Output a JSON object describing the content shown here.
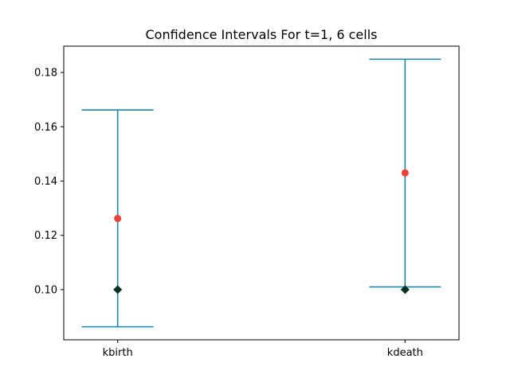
{
  "chart_data": {
    "type": "errorbar",
    "title": "Confidence Intervals For t=1, 6 cells",
    "xlabel": "",
    "ylabel": "",
    "categories": [
      "kbirth",
      "kdeath"
    ],
    "intervals": [
      {
        "category": "kbirth",
        "lower": 0.0863,
        "upper": 0.1662,
        "estimate": 0.1262,
        "true_value": 0.1
      },
      {
        "category": "kdeath",
        "lower": 0.101,
        "upper": 0.1849,
        "estimate": 0.143,
        "true_value": 0.1
      }
    ],
    "ylim": [
      0.0815,
      0.1897
    ],
    "yticks": [
      "0.10",
      "0.12",
      "0.14",
      "0.16",
      "0.18"
    ],
    "grid": false,
    "colors": {
      "interval": "#1f85a8",
      "estimate": "#ee4035",
      "true_value": "#033222",
      "axis": "#000000"
    }
  }
}
